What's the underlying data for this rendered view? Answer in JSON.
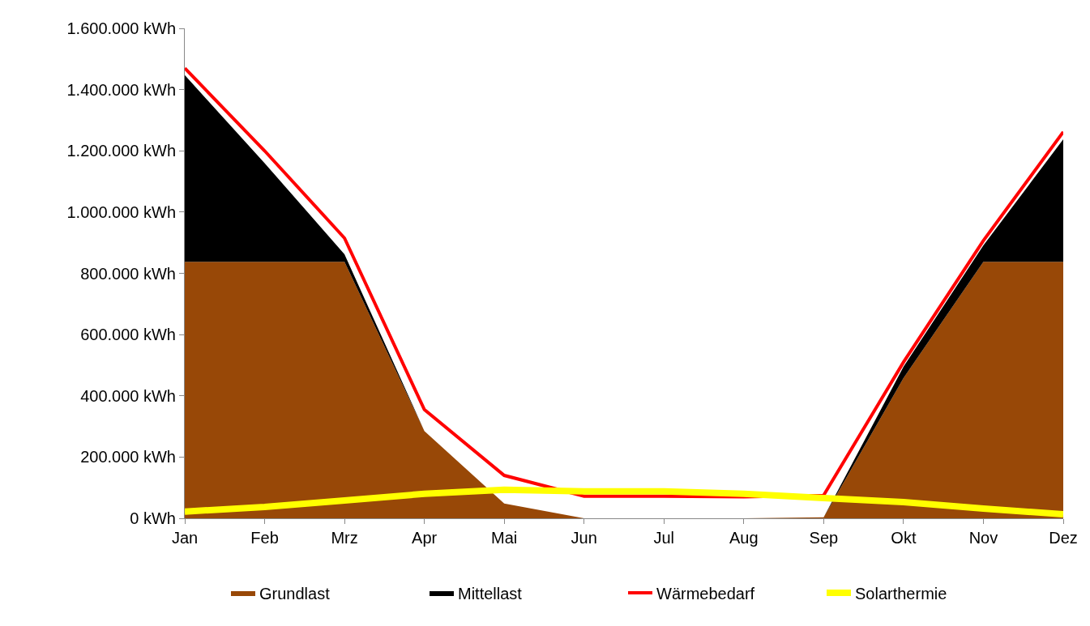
{
  "chart_data": {
    "type": "area",
    "stacked": true,
    "categories": [
      "Jan",
      "Feb",
      "Mrz",
      "Apr",
      "Mai",
      "Jun",
      "Jul",
      "Aug",
      "Sep",
      "Okt",
      "Nov",
      "Dez"
    ],
    "series": [
      {
        "name": "Grundlast",
        "color": "#984807",
        "values": [
          838000,
          838000,
          838000,
          285000,
          48000,
          0,
          0,
          0,
          3000,
          458000,
          838000,
          838000
        ]
      },
      {
        "name": "Mittellast",
        "color": "#000000",
        "values": [
          609000,
          322000,
          24000,
          0,
          0,
          0,
          0,
          0,
          0,
          37000,
          53000,
          400000
        ]
      },
      {
        "name": "Wärmebedarf",
        "type": "line",
        "color": "#ff0000",
        "values": [
          1470000,
          1200000,
          915000,
          355000,
          140000,
          72000,
          72000,
          70000,
          75000,
          510000,
          907000,
          1262000
        ]
      },
      {
        "name": "Solarthermie",
        "type": "line",
        "color": "#ffff00",
        "values": [
          22000,
          37000,
          58000,
          80000,
          93000,
          88000,
          88000,
          80000,
          66000,
          53000,
          32000,
          13000
        ]
      }
    ],
    "ylim": [
      0,
      1600000
    ],
    "yticks": [
      {
        "value": 0,
        "label": "0 kWh"
      },
      {
        "value": 200000,
        "label": "200.000 kWh"
      },
      {
        "value": 400000,
        "label": "400.000 kWh"
      },
      {
        "value": 600000,
        "label": "600.000 kWh"
      },
      {
        "value": 800000,
        "label": "800.000 kWh"
      },
      {
        "value": 1000000,
        "label": "1.000.000 kWh"
      },
      {
        "value": 1200000,
        "label": "1.200.000 kWh"
      },
      {
        "value": 1400000,
        "label": "1.400.000 kWh"
      },
      {
        "value": 1600000,
        "label": "1.600.000 kWh"
      }
    ],
    "grid": false,
    "legend": "bottom",
    "line_style": "solid",
    "marker": "none"
  }
}
